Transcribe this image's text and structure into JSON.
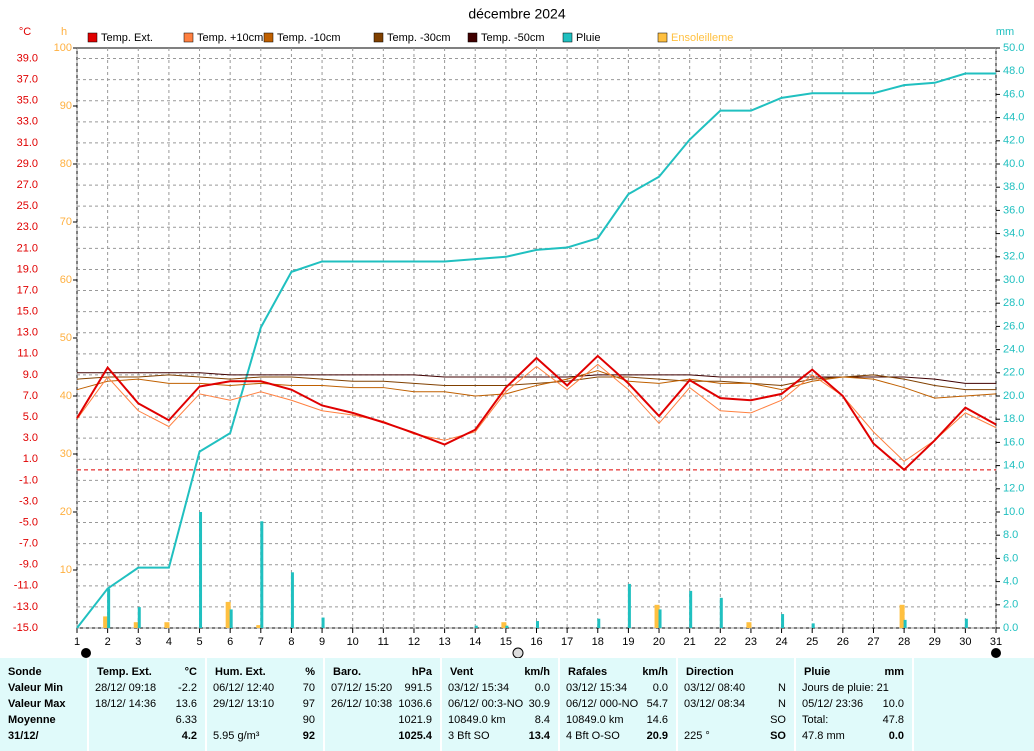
{
  "chart_data": {
    "type": "line",
    "title": "décembre 2024",
    "y_unit": "°C",
    "h_unit": "h",
    "y2_unit": "mm",
    "x": [
      1,
      2,
      3,
      4,
      5,
      6,
      7,
      8,
      9,
      10,
      11,
      12,
      13,
      14,
      15,
      16,
      17,
      18,
      19,
      20,
      21,
      22,
      23,
      24,
      25,
      26,
      27,
      28,
      29,
      30,
      31
    ],
    "xlim": [
      1,
      31
    ],
    "xticks": [
      1,
      2,
      3,
      4,
      5,
      6,
      7,
      8,
      9,
      10,
      11,
      12,
      13,
      14,
      15,
      16,
      17,
      18,
      19,
      20,
      21,
      22,
      23,
      24,
      25,
      26,
      27,
      28,
      29,
      30,
      31
    ],
    "ylim": [
      -15,
      40
    ],
    "yticks": [
      {
        "value": -15,
        "label": "-15.0"
      },
      {
        "value": -13,
        "label": "-13.0"
      },
      {
        "value": -11,
        "label": "-11.0"
      },
      {
        "value": -9,
        "label": "-9.0"
      },
      {
        "value": -7,
        "label": "-7.0"
      },
      {
        "value": -5,
        "label": "-5.0"
      },
      {
        "value": -3,
        "label": "-3.0"
      },
      {
        "value": -1,
        "label": "-1.0"
      },
      {
        "value": 1,
        "label": "1.0"
      },
      {
        "value": 3,
        "label": "3.0"
      },
      {
        "value": 5,
        "label": "5.0"
      },
      {
        "value": 7,
        "label": "7.0"
      },
      {
        "value": 9,
        "label": "9.0"
      },
      {
        "value": 11,
        "label": "11.0"
      },
      {
        "value": 13,
        "label": "13.0"
      },
      {
        "value": 15,
        "label": "15.0"
      },
      {
        "value": 17,
        "label": "17.0"
      },
      {
        "value": 19,
        "label": "19.0"
      },
      {
        "value": 21,
        "label": "21.0"
      },
      {
        "value": 23,
        "label": "23.0"
      },
      {
        "value": 25,
        "label": "25.0"
      },
      {
        "value": 27,
        "label": "27.0"
      },
      {
        "value": 29,
        "label": "29.0"
      },
      {
        "value": 31,
        "label": "31.0"
      },
      {
        "value": 33,
        "label": "33.0"
      },
      {
        "value": 35,
        "label": "35.0"
      },
      {
        "value": 37,
        "label": "37.0"
      },
      {
        "value": 39,
        "label": "39.0"
      }
    ],
    "hlim": [
      0,
      100
    ],
    "hticks": [
      10,
      20,
      30,
      40,
      50,
      60,
      70,
      80,
      90,
      100
    ],
    "y2lim": [
      0,
      50
    ],
    "y2ticks": [
      {
        "value": 0,
        "label": "0.0"
      },
      {
        "value": 2,
        "label": "2.0"
      },
      {
        "value": 4,
        "label": "4.0"
      },
      {
        "value": 6,
        "label": "6.0"
      },
      {
        "value": 8,
        "label": "8.0"
      },
      {
        "value": 10,
        "label": "10.0"
      },
      {
        "value": 12,
        "label": "12.0"
      },
      {
        "value": 14,
        "label": "14.0"
      },
      {
        "value": 16,
        "label": "16.0"
      },
      {
        "value": 18,
        "label": "18.0"
      },
      {
        "value": 20,
        "label": "20.0"
      },
      {
        "value": 22,
        "label": "22.0"
      },
      {
        "value": 24,
        "label": "24.0"
      },
      {
        "value": 26,
        "label": "26.0"
      },
      {
        "value": 28,
        "label": "28.0"
      },
      {
        "value": 30,
        "label": "30.0"
      },
      {
        "value": 32,
        "label": "32.0"
      },
      {
        "value": 34,
        "label": "34.0"
      },
      {
        "value": 36,
        "label": "36.0"
      },
      {
        "value": 38,
        "label": "38.0"
      },
      {
        "value": 40,
        "label": "40.0"
      },
      {
        "value": 42,
        "label": "42.0"
      },
      {
        "value": 44,
        "label": "44.0"
      },
      {
        "value": 46,
        "label": "46.0"
      },
      {
        "value": 48,
        "label": "48.0"
      },
      {
        "value": 50,
        "label": "50.0"
      }
    ],
    "grid": true,
    "reference_line": 0,
    "series": [
      {
        "name": "Temp. Ext.",
        "color": "#e00000",
        "width": 2,
        "values": [
          4.9,
          9.7,
          6.3,
          4.7,
          7.9,
          8.4,
          8.4,
          7.6,
          6.1,
          5.4,
          4.5,
          3.5,
          2.4,
          3.8,
          7.8,
          10.6,
          8.0,
          10.8,
          8.2,
          5.1,
          8.5,
          6.8,
          6.6,
          7.2,
          9.5,
          7.0,
          2.5,
          0.0,
          2.8,
          5.9,
          4.3
        ]
      },
      {
        "name": "Temp. +10cm",
        "color": "#ff8040",
        "width": 1,
        "values": [
          4.8,
          8.8,
          5.6,
          4.1,
          7.2,
          6.6,
          7.4,
          6.6,
          5.6,
          5.2,
          4.6,
          3.4,
          2.8,
          3.6,
          7.4,
          9.8,
          7.6,
          10.0,
          7.6,
          4.4,
          7.8,
          5.6,
          5.4,
          6.6,
          9.0,
          7.0,
          3.6,
          0.8,
          2.8,
          5.4,
          4.0
        ]
      },
      {
        "name": "Temp. -10cm",
        "color": "#c06000",
        "width": 1,
        "values": [
          7.6,
          8.4,
          8.6,
          8.2,
          8.2,
          8.0,
          8.2,
          8.0,
          8.0,
          7.8,
          7.8,
          7.4,
          7.4,
          7.0,
          7.2,
          8.0,
          8.6,
          9.4,
          8.4,
          8.2,
          8.6,
          8.2,
          8.2,
          7.6,
          8.4,
          8.8,
          8.6,
          7.8,
          6.8,
          7.0,
          7.2
        ]
      },
      {
        "name": "Temp. -30cm",
        "color": "#804000",
        "width": 1,
        "values": [
          8.6,
          8.8,
          8.8,
          9.0,
          8.8,
          8.6,
          8.8,
          8.8,
          8.6,
          8.4,
          8.4,
          8.2,
          8.0,
          8.0,
          8.0,
          8.2,
          8.4,
          8.8,
          8.8,
          8.6,
          8.4,
          8.4,
          8.2,
          8.0,
          8.6,
          8.8,
          9.0,
          8.6,
          8.0,
          7.6,
          7.6
        ]
      },
      {
        "name": "Temp. -50cm",
        "color": "#400000",
        "width": 1,
        "values": [
          9.2,
          9.2,
          9.2,
          9.2,
          9.2,
          9.0,
          9.0,
          9.0,
          9.0,
          9.0,
          9.0,
          9.0,
          8.8,
          8.8,
          8.8,
          8.8,
          8.8,
          9.0,
          9.0,
          9.0,
          9.0,
          8.8,
          8.8,
          8.8,
          8.8,
          8.8,
          8.8,
          8.8,
          8.6,
          8.2,
          8.2
        ]
      },
      {
        "name": "Pluie",
        "color": "#20c0c0",
        "width": 2,
        "axis": "y2",
        "values": [
          0,
          3.4,
          5.2,
          5.2,
          15.2,
          16.8,
          25.9,
          30.7,
          31.6,
          31.6,
          31.6,
          31.6,
          31.6,
          31.8,
          32.0,
          32.6,
          32.8,
          33.6,
          37.4,
          38.9,
          42.1,
          44.6,
          44.6,
          45.7,
          46.1,
          46.1,
          46.1,
          46.8,
          47.0,
          47.8,
          47.8
        ]
      }
    ],
    "rain_daily": {
      "color": "#20c0c0",
      "axis": "y2",
      "values": [
        0,
        3.4,
        1.8,
        0,
        10.0,
        1.6,
        9.2,
        4.8,
        0.9,
        0,
        0,
        0,
        0,
        0.2,
        0.2,
        0.6,
        0,
        0.8,
        3.8,
        1.6,
        3.2,
        2.6,
        0,
        1.2,
        0.4,
        0,
        0,
        0.7,
        0,
        0.8,
        0
      ]
    },
    "sunshine": {
      "name": "Ensoleilleme",
      "color": "#ffc040",
      "axis": "h",
      "values": [
        0,
        2,
        1,
        1,
        0,
        4.5,
        0.5,
        0,
        0,
        0,
        0,
        0,
        0,
        0,
        1,
        0,
        0,
        0,
        0,
        4,
        0,
        0,
        1,
        0,
        0,
        0,
        0,
        4,
        0,
        0,
        0
      ]
    }
  },
  "table": {
    "columns": [
      {
        "title": "Sonde",
        "rows": [
          {
            "right": "Valeur Min"
          },
          {
            "right": "Valeur Max"
          },
          {
            "right": "Moyenne"
          },
          {
            "right": "31/12/"
          }
        ]
      },
      {
        "title": "Temp. Ext.",
        "unit": "°C",
        "rows": [
          {
            "left": "28/12/  09:18",
            "right": "-2.2"
          },
          {
            "left": "18/12/  14:36",
            "right": "13.6"
          },
          {
            "right": "6.33"
          },
          {
            "right": "4.2"
          }
        ]
      },
      {
        "title": "Hum. Ext.",
        "unit": "%",
        "rows": [
          {
            "left": "06/12/  12:40",
            "right": "70"
          },
          {
            "left": "29/12/  13:10",
            "right": "97"
          },
          {
            "right": "90"
          },
          {
            "left": "5.95 g/m³",
            "right": "92"
          }
        ]
      },
      {
        "title": "Baro.",
        "unit": "hPa",
        "rows": [
          {
            "left": "07/12/  15:20",
            "right": "991.5"
          },
          {
            "left": "26/12/  10:38",
            "right": "1036.6"
          },
          {
            "right": "1021.9"
          },
          {
            "right": "1025.4"
          }
        ]
      },
      {
        "title": "Vent",
        "unit": "km/h",
        "rows": [
          {
            "left": "03/12/  15:34",
            "right": "0.0"
          },
          {
            "left": "06/12/  00:3-NO",
            "right": "30.9"
          },
          {
            "left": "10849.0 km",
            "right": "8.4"
          },
          {
            "left": "3 Bft SO",
            "right": "13.4"
          }
        ]
      },
      {
        "title": "Rafales",
        "unit": "km/h",
        "rows": [
          {
            "left": "03/12/  15:34",
            "right": "0.0"
          },
          {
            "left": "06/12/  000-NO",
            "right": "54.7"
          },
          {
            "left": "10849.0 km",
            "right": "14.6"
          },
          {
            "left": "4 Bft O-SO",
            "right": "20.9"
          }
        ]
      },
      {
        "title": "Direction",
        "rows": [
          {
            "left": "03/12/  08:40",
            "right": "N"
          },
          {
            "left": "03/12/  08:34",
            "right": "N"
          },
          {
            "right": "SO"
          },
          {
            "left": "225 °",
            "right": "SO"
          }
        ]
      },
      {
        "title": "Pluie",
        "unit": "mm",
        "rows": [
          {
            "left": "Jours de pluie: 21"
          },
          {
            "left": "05/12/  23:36",
            "right": "10.0"
          },
          {
            "left": "Total:",
            "right": "47.8"
          },
          {
            "left": "47.8 mm",
            "right": "0.0"
          }
        ]
      }
    ]
  }
}
